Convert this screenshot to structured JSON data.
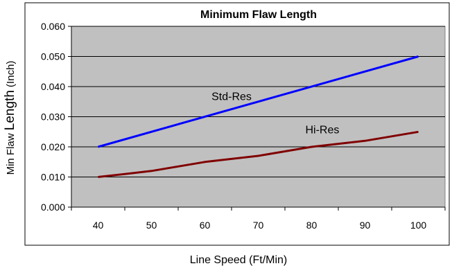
{
  "chart_data": {
    "type": "line",
    "title": "Minimum Flaw Length",
    "xlabel": "Line Speed (Ft/Min)",
    "ylabel_parts": [
      "Min Flaw ",
      "Length",
      " (Inch)"
    ],
    "x_ticks": [
      "40",
      "50",
      "60",
      "70",
      "80",
      "90",
      "100"
    ],
    "y_ticks": [
      "0.000",
      "0.010",
      "0.020",
      "0.030",
      "0.040",
      "0.050",
      "0.060"
    ],
    "xlim": [
      35,
      105
    ],
    "ylim": [
      0,
      0.06
    ],
    "grid": true,
    "plot_background": "#c0c0c0",
    "series": [
      {
        "name": "Std-Res",
        "color": "#0000ff",
        "x": [
          40,
          100
        ],
        "values": [
          0.02,
          0.05
        ],
        "label_at": [
          65,
          0.0355
        ]
      },
      {
        "name": "Hi-Res",
        "color": "#800000",
        "x": [
          40,
          45,
          50,
          55,
          60,
          65,
          70,
          75,
          80,
          85,
          90,
          95,
          100
        ],
        "values": [
          0.01,
          0.011,
          0.012,
          0.0135,
          0.015,
          0.016,
          0.017,
          0.0185,
          0.02,
          0.021,
          0.022,
          0.0235,
          0.025
        ],
        "label_at": [
          82,
          0.0245
        ]
      }
    ]
  }
}
